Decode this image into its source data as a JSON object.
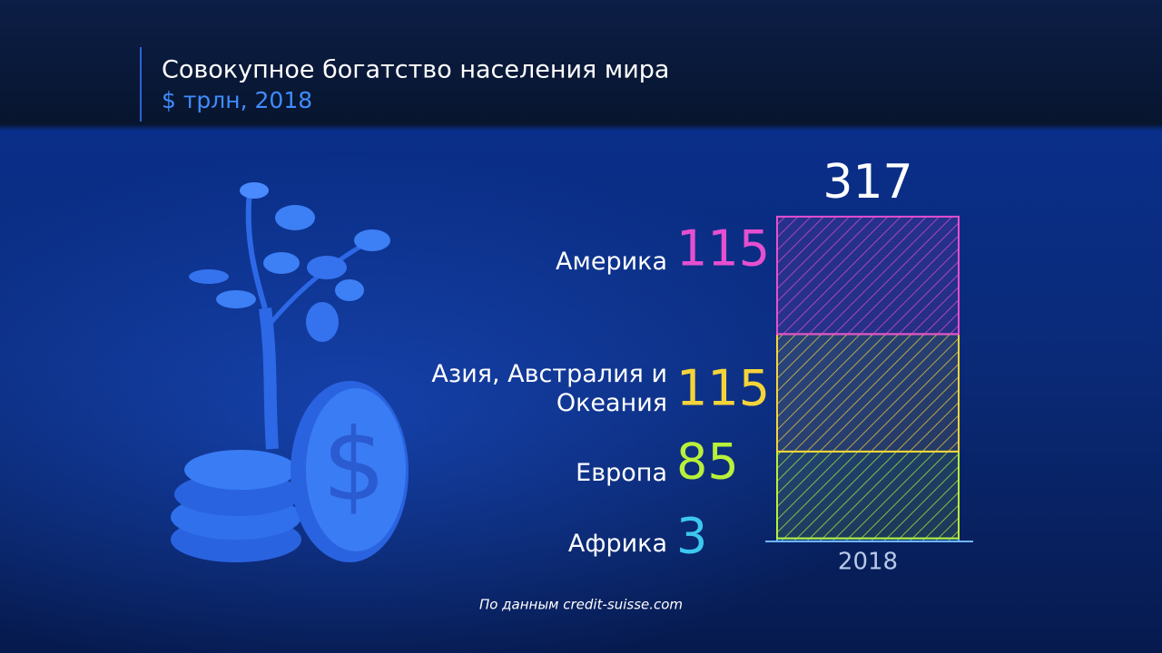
{
  "chart_data": {
    "type": "stacked-bar",
    "title": "Совокупное богатство населения мира",
    "subtitle": "$ трлн, 2018",
    "categories": [
      "2018"
    ],
    "total": 317,
    "series": [
      {
        "name": "Африка",
        "color": "#3cc8f0",
        "values": [
          3
        ]
      },
      {
        "name": "Европа",
        "color": "#b8f03a",
        "values": [
          85
        ]
      },
      {
        "name": "Азия, Австралия и Океания",
        "color": "#f5d43a",
        "values": [
          115
        ]
      },
      {
        "name": "Америка",
        "color": "#e64fd0",
        "values": [
          115
        ]
      }
    ]
  },
  "source": "По данным credit-suisse.com"
}
